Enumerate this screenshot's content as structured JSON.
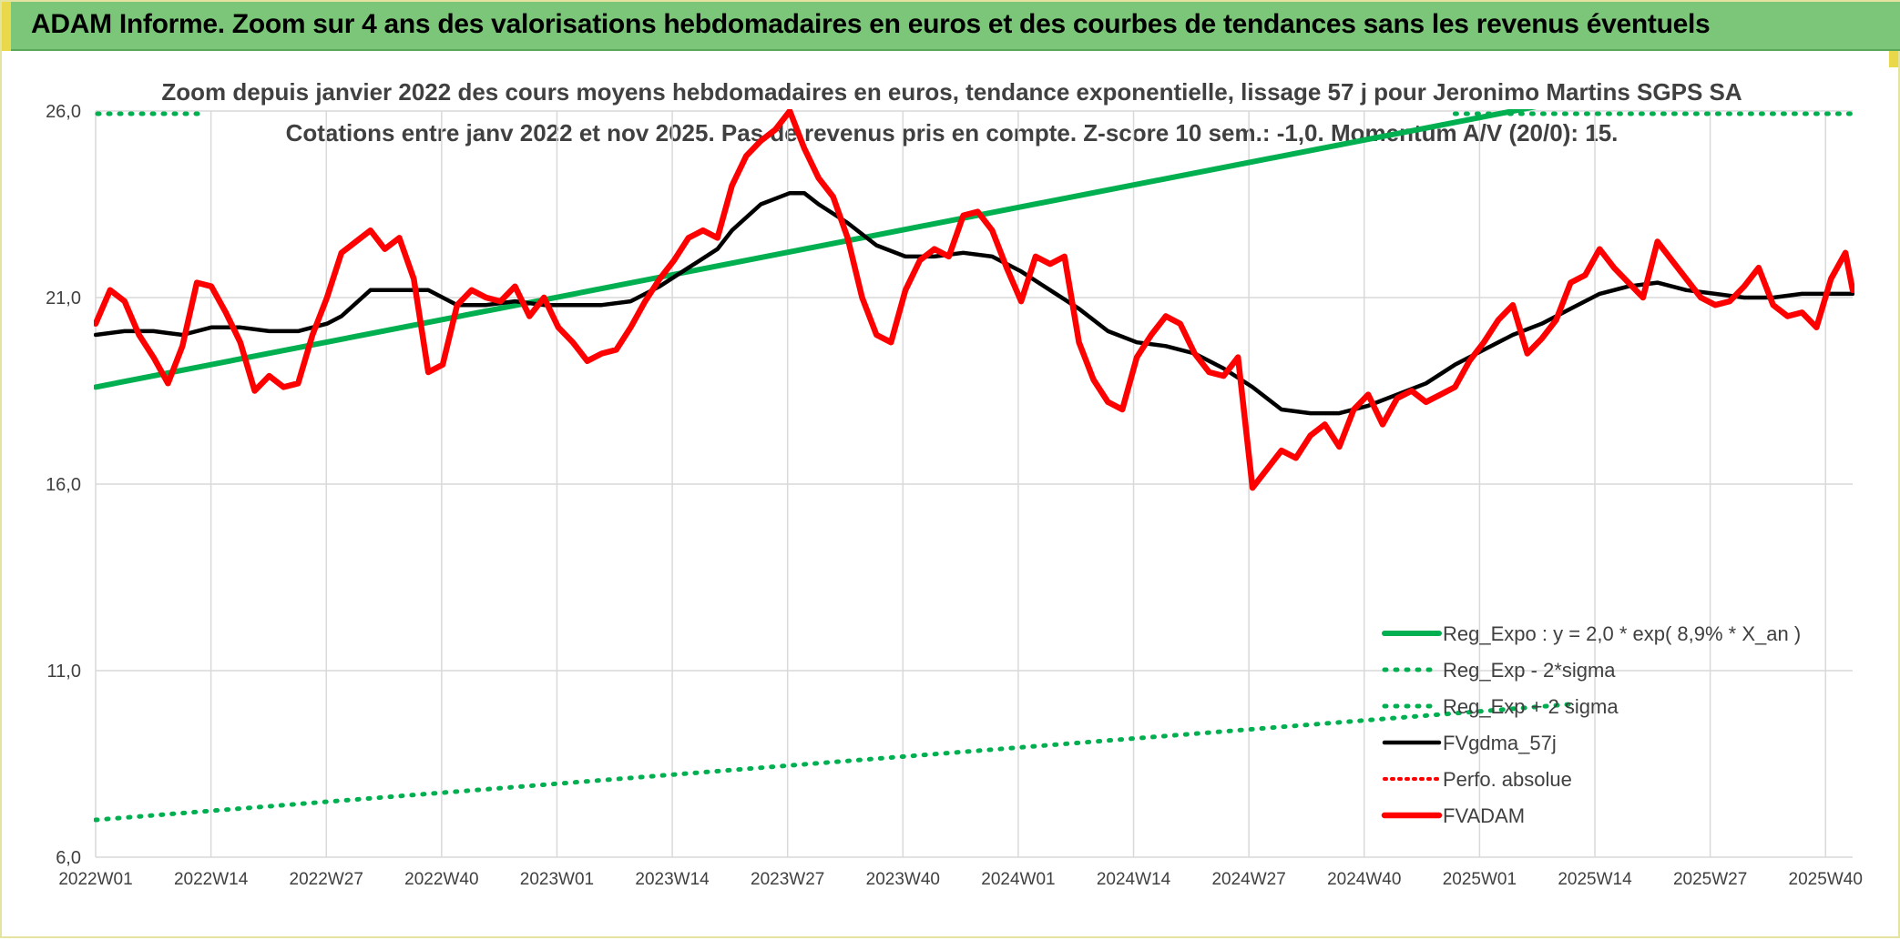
{
  "banner": {
    "title": "ADAM Informe. Zoom sur 4 ans des valorisations hebdomadaires en euros et des courbes de tendances sans les revenus éventuels"
  },
  "colors": {
    "banner_bg": "#7cc67a",
    "reg_expo": "#00b050",
    "fvgdma": "#000000",
    "fvadam": "#ff0000",
    "perfo": "#ff0000",
    "grid": "#d9d9d9",
    "text": "#404040"
  },
  "chart_data": {
    "type": "line",
    "title_line1": "Zoom depuis janvier 2022 des cours moyens hebdomadaires en euros, tendance exponentielle, lissage 57 j pour Jeronimo Martins SGPS SA",
    "title_line2": "Cotations entre janv 2022 et nov 2025. Pas de revenus pris en compte. Z-score 10 sem.: -1,0. Momentum A/V (20/0): 15.",
    "ylim": [
      6.0,
      26.0
    ],
    "y_ticks": [
      "6,0",
      "11,0",
      "16,0",
      "21,0",
      "26,0"
    ],
    "x_tick_labels": [
      "2022W01",
      "2022W14",
      "2022W27",
      "2022W40",
      "2023W01",
      "2023W14",
      "2023W27",
      "2023W40",
      "2024W01",
      "2024W14",
      "2024W27",
      "2024W40",
      "2025W01",
      "2025W14",
      "2025W27",
      "2025W40"
    ],
    "grid": true,
    "legend_position": "bottom-right",
    "series": [
      {
        "name": "Reg_Expo : y = 2,0 * exp( 8,9% *  X_an )",
        "style": "solid",
        "values": [
          [
            0,
            18.6
          ],
          [
            204,
            26.3
          ]
        ]
      },
      {
        "name": "Reg_Exp - 2*sigma",
        "style": "dotted",
        "values": [
          [
            0,
            7.0
          ],
          [
            204,
            10.1
          ]
        ]
      },
      {
        "name": "Reg_Exp + 2 sigma",
        "style": "dotted",
        "values": [
          [
            0,
            30.0
          ],
          [
            15,
            30.0
          ],
          [
            180,
            30.0
          ],
          [
            204,
            30.0
          ]
        ]
      },
      {
        "name": "FVgdma_57j",
        "style": "solid",
        "values": [
          [
            0,
            20.0
          ],
          [
            4,
            20.1
          ],
          [
            8,
            20.1
          ],
          [
            10,
            20.05
          ],
          [
            12,
            20.0
          ],
          [
            16,
            20.2
          ],
          [
            20,
            20.2
          ],
          [
            24,
            20.1
          ],
          [
            28,
            20.1
          ],
          [
            32,
            20.3
          ],
          [
            34,
            20.5
          ],
          [
            38,
            21.2
          ],
          [
            42,
            21.2
          ],
          [
            46,
            21.2
          ],
          [
            50,
            20.8
          ],
          [
            54,
            20.8
          ],
          [
            58,
            20.9
          ],
          [
            62,
            20.8
          ],
          [
            66,
            20.8
          ],
          [
            70,
            20.8
          ],
          [
            74,
            20.9
          ],
          [
            78,
            21.3
          ],
          [
            82,
            21.8
          ],
          [
            86,
            22.3
          ],
          [
            88,
            22.8
          ],
          [
            92,
            23.5
          ],
          [
            96,
            23.8
          ],
          [
            98,
            23.8
          ],
          [
            100,
            23.5
          ],
          [
            104,
            23.0
          ],
          [
            108,
            22.4
          ],
          [
            112,
            22.1
          ],
          [
            116,
            22.1
          ],
          [
            120,
            22.2
          ],
          [
            124,
            22.1
          ],
          [
            128,
            21.7
          ],
          [
            132,
            21.2
          ],
          [
            136,
            20.7
          ],
          [
            140,
            20.1
          ],
          [
            144,
            19.8
          ],
          [
            148,
            19.7
          ],
          [
            152,
            19.5
          ],
          [
            156,
            19.1
          ],
          [
            160,
            18.6
          ],
          [
            164,
            18.0
          ],
          [
            168,
            17.9
          ],
          [
            172,
            17.9
          ],
          [
            176,
            18.1
          ],
          [
            180,
            18.4
          ],
          [
            184,
            18.7
          ],
          [
            188,
            19.2
          ],
          [
            192,
            19.6
          ],
          [
            196,
            20.0
          ],
          [
            200,
            20.3
          ],
          [
            204,
            20.7
          ],
          [
            208,
            21.1
          ],
          [
            212,
            21.3
          ],
          [
            216,
            21.4
          ],
          [
            220,
            21.2
          ],
          [
            224,
            21.1
          ],
          [
            228,
            21.0
          ],
          [
            232,
            21.0
          ],
          [
            236,
            21.1
          ],
          [
            240,
            21.1
          ],
          [
            243,
            21.1
          ]
        ]
      },
      {
        "name": "Perfo. absolue",
        "style": "dotted",
        "values": []
      },
      {
        "name": "FVADAM",
        "style": "solid",
        "values": [
          [
            0,
            20.3
          ],
          [
            2,
            21.2
          ],
          [
            4,
            20.9
          ],
          [
            6,
            20.0
          ],
          [
            8,
            19.4
          ],
          [
            10,
            18.7
          ],
          [
            12,
            19.7
          ],
          [
            14,
            21.4
          ],
          [
            16,
            21.3
          ],
          [
            18,
            20.6
          ],
          [
            20,
            19.8
          ],
          [
            22,
            18.5
          ],
          [
            24,
            18.9
          ],
          [
            26,
            18.6
          ],
          [
            28,
            18.7
          ],
          [
            30,
            20.0
          ],
          [
            32,
            21.0
          ],
          [
            34,
            22.2
          ],
          [
            36,
            22.5
          ],
          [
            38,
            22.8
          ],
          [
            40,
            22.3
          ],
          [
            42,
            22.6
          ],
          [
            44,
            21.5
          ],
          [
            46,
            19.0
          ],
          [
            48,
            19.2
          ],
          [
            50,
            20.8
          ],
          [
            52,
            21.2
          ],
          [
            54,
            21.0
          ],
          [
            56,
            20.9
          ],
          [
            58,
            21.3
          ],
          [
            60,
            20.5
          ],
          [
            62,
            21.0
          ],
          [
            64,
            20.2
          ],
          [
            66,
            19.8
          ],
          [
            68,
            19.3
          ],
          [
            70,
            19.5
          ],
          [
            72,
            19.6
          ],
          [
            74,
            20.2
          ],
          [
            76,
            20.9
          ],
          [
            78,
            21.5
          ],
          [
            80,
            22.0
          ],
          [
            82,
            22.6
          ],
          [
            84,
            22.8
          ],
          [
            86,
            22.6
          ],
          [
            88,
            24.0
          ],
          [
            90,
            24.8
          ],
          [
            92,
            25.2
          ],
          [
            94,
            25.5
          ],
          [
            96,
            26.0
          ],
          [
            98,
            25.0
          ],
          [
            100,
            24.2
          ],
          [
            102,
            23.7
          ],
          [
            104,
            22.6
          ],
          [
            106,
            21.0
          ],
          [
            108,
            20.0
          ],
          [
            110,
            19.8
          ],
          [
            112,
            21.2
          ],
          [
            114,
            22.0
          ],
          [
            116,
            22.3
          ],
          [
            118,
            22.1
          ],
          [
            120,
            23.2
          ],
          [
            122,
            23.3
          ],
          [
            124,
            22.8
          ],
          [
            126,
            21.8
          ],
          [
            128,
            20.9
          ],
          [
            130,
            22.1
          ],
          [
            132,
            21.9
          ],
          [
            134,
            22.1
          ],
          [
            136,
            19.8
          ],
          [
            138,
            18.8
          ],
          [
            140,
            18.2
          ],
          [
            142,
            18.0
          ],
          [
            144,
            19.4
          ],
          [
            146,
            20.0
          ],
          [
            148,
            20.5
          ],
          [
            150,
            20.3
          ],
          [
            152,
            19.5
          ],
          [
            154,
            19.0
          ],
          [
            156,
            18.9
          ],
          [
            158,
            19.4
          ],
          [
            160,
            15.9
          ],
          [
            162,
            16.4
          ],
          [
            164,
            16.9
          ],
          [
            166,
            16.7
          ],
          [
            168,
            17.3
          ],
          [
            170,
            17.6
          ],
          [
            172,
            17.0
          ],
          [
            174,
            18.0
          ],
          [
            176,
            18.4
          ],
          [
            178,
            17.6
          ],
          [
            180,
            18.3
          ],
          [
            182,
            18.5
          ],
          [
            184,
            18.2
          ],
          [
            186,
            18.4
          ],
          [
            188,
            18.6
          ],
          [
            190,
            19.3
          ],
          [
            192,
            19.8
          ],
          [
            194,
            20.4
          ],
          [
            196,
            20.8
          ],
          [
            198,
            19.5
          ],
          [
            200,
            19.9
          ],
          [
            202,
            20.4
          ],
          [
            204,
            21.4
          ],
          [
            206,
            21.6
          ],
          [
            208,
            22.3
          ],
          [
            210,
            21.8
          ],
          [
            212,
            21.4
          ],
          [
            214,
            21.0
          ],
          [
            216,
            22.5
          ],
          [
            218,
            22.0
          ],
          [
            220,
            21.5
          ],
          [
            222,
            21.0
          ],
          [
            224,
            20.8
          ],
          [
            226,
            20.9
          ],
          [
            228,
            21.3
          ],
          [
            230,
            21.8
          ],
          [
            232,
            20.8
          ],
          [
            234,
            20.5
          ],
          [
            236,
            20.6
          ],
          [
            238,
            20.2
          ],
          [
            240,
            21.5
          ],
          [
            242,
            22.2
          ],
          [
            243,
            21.2
          ]
        ]
      }
    ]
  }
}
